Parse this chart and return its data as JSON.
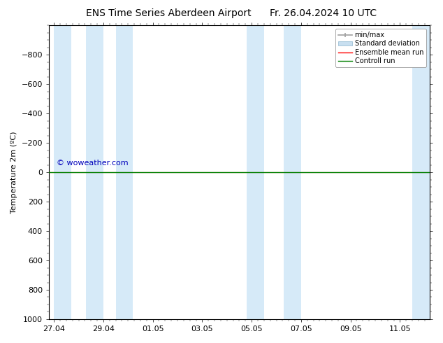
{
  "title": "ENS Time Series Aberdeen Airport",
  "title2": "Fr. 26.04.2024 10 UTC",
  "ylabel": "Temperature 2m (ºC)",
  "ylim_top": -1000,
  "ylim_bottom": 1000,
  "ytick_vals": [
    -800,
    -600,
    -400,
    -200,
    0,
    200,
    400,
    600,
    800,
    1000
  ],
  "xtick_positions": [
    0,
    2,
    4,
    6,
    8,
    10,
    12,
    14
  ],
  "xtick_labels": [
    "27.04",
    "29.04",
    "01.05",
    "03.05",
    "05.05",
    "07.05",
    "09.05",
    "11.05"
  ],
  "xlim": [
    -0.2,
    15.2
  ],
  "watermark": "© woweather.com",
  "background_color": "#ffffff",
  "plot_bg_color": "#ffffff",
  "shaded_bands": [
    {
      "x_start": 0.0,
      "x_end": 0.7
    },
    {
      "x_start": 1.3,
      "x_end": 2.0
    },
    {
      "x_start": 2.5,
      "x_end": 3.2
    },
    {
      "x_start": 7.8,
      "x_end": 8.5
    },
    {
      "x_start": 9.3,
      "x_end": 10.0
    },
    {
      "x_start": 14.5,
      "x_end": 15.2
    }
  ],
  "band_color": "#d6eaf8",
  "control_run_y": 0,
  "ensemble_mean_y": 0,
  "control_run_color": "#008000",
  "ensemble_mean_color": "#ff0000",
  "legend_minmax_color": "#a0a0a0",
  "legend_stddev_color": "#c8dff0",
  "axis_label_fontsize": 8,
  "tick_fontsize": 8,
  "title_fontsize": 10,
  "watermark_color": "#0000bb",
  "watermark_fontsize": 8
}
